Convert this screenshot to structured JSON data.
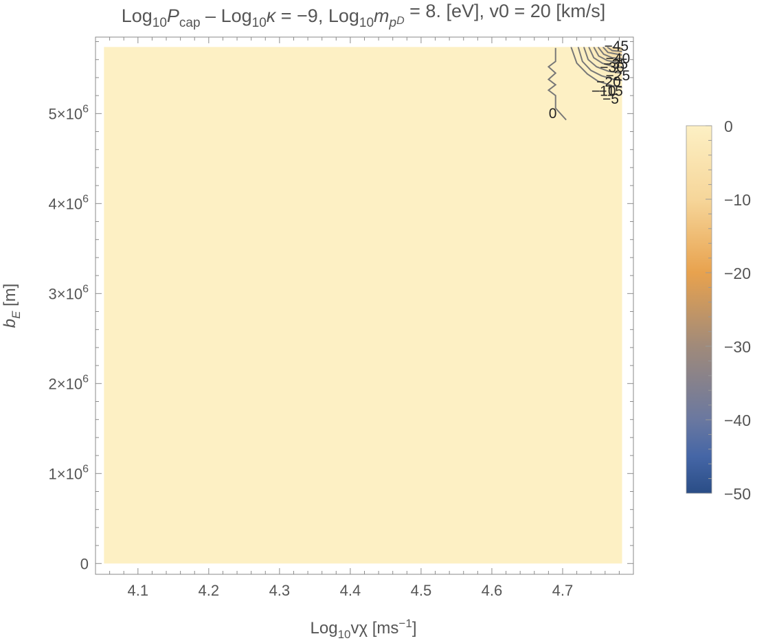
{
  "chart_data": {
    "type": "heatmap",
    "title": {
      "parts": [
        {
          "t": "Log",
          "s": null
        },
        {
          "t": "10",
          "s": "sub"
        },
        {
          "t": "P",
          "s": "italic"
        },
        {
          "t": "cap",
          "s": "sub"
        },
        {
          "t": " – Log",
          "s": null
        },
        {
          "t": "10",
          "s": "sub"
        },
        {
          "t": "κ",
          "s": "italic"
        },
        {
          "t": " = −9, Log",
          "s": null
        },
        {
          "t": "10",
          "s": "sub"
        },
        {
          "t": "m",
          "s": "italic"
        },
        {
          "t": "p",
          "s": "sub-italic"
        },
        {
          "t": "D",
          "s": "subsub-italic"
        },
        {
          "t": " = 8. [eV], v0 = 20 [km/s]",
          "s": null
        }
      ]
    },
    "xlabel": {
      "parts": [
        {
          "t": "Log",
          "s": null
        },
        {
          "t": "10",
          "s": "sub"
        },
        {
          "t": "vχ [ms",
          "s": null
        },
        {
          "t": "−1",
          "s": "sup"
        },
        {
          "t": "]",
          "s": null
        }
      ]
    },
    "ylabel": {
      "parts": [
        {
          "t": "b",
          "s": "italic"
        },
        {
          "t": "E",
          "s": "sub-italic"
        },
        {
          "t": " [m]",
          "s": null
        }
      ]
    },
    "xlim": [
      4.04,
      4.8
    ],
    "ylim": [
      -120000,
      5850000
    ],
    "data_extent": {
      "x": [
        4.052,
        4.784
      ],
      "y": [
        0,
        5740000
      ]
    },
    "x_ticks": [
      4.1,
      4.2,
      4.3,
      4.4,
      4.5,
      4.6,
      4.7
    ],
    "x_tick_labels": [
      "4.1",
      "4.2",
      "4.3",
      "4.4",
      "4.5",
      "4.6",
      "4.7"
    ],
    "y_ticks": [
      0,
      1000000,
      2000000,
      3000000,
      4000000,
      5000000
    ],
    "y_tick_labels": [
      {
        "mant": "0",
        "exp": ""
      },
      {
        "mant": "1×10",
        "exp": "6"
      },
      {
        "mant": "2×10",
        "exp": "6"
      },
      {
        "mant": "3×10",
        "exp": "6"
      },
      {
        "mant": "4×10",
        "exp": "6"
      },
      {
        "mant": "5×10",
        "exp": "6"
      }
    ],
    "background_value": 0,
    "contours": [
      {
        "level": 0,
        "label": "0",
        "points": [
          [
            4.69,
            5.73
          ],
          [
            4.69,
            5.58
          ],
          [
            4.68,
            5.52
          ],
          [
            4.69,
            5.45
          ],
          [
            4.68,
            5.38
          ],
          [
            4.69,
            5.32
          ],
          [
            4.68,
            5.26
          ],
          [
            4.69,
            5.2
          ],
          [
            4.69,
            5.06
          ],
          [
            4.705,
            4.93
          ]
        ],
        "label_at": [
          4.686,
          5.01
        ]
      },
      {
        "level": -5,
        "label": "−5",
        "points": [
          [
            4.712,
            5.74
          ],
          [
            4.72,
            5.56
          ],
          [
            4.735,
            5.44
          ],
          [
            4.75,
            5.36
          ],
          [
            4.77,
            5.31
          ],
          [
            4.784,
            5.29
          ]
        ],
        "label_at": [
          4.768,
          5.17
        ]
      },
      {
        "level": -10,
        "label": "−10",
        "points": [
          [
            4.722,
            5.74
          ],
          [
            4.728,
            5.58
          ],
          [
            4.74,
            5.48
          ],
          [
            4.755,
            5.42
          ],
          [
            4.772,
            5.38
          ],
          [
            4.784,
            5.37
          ]
        ],
        "label_at": [
          4.758,
          5.26
        ]
      },
      {
        "level": -15,
        "label": "−15",
        "points": [
          [
            4.73,
            5.74
          ],
          [
            4.736,
            5.6
          ],
          [
            4.748,
            5.52
          ],
          [
            4.765,
            5.47
          ],
          [
            4.784,
            5.45
          ]
        ],
        "label_at": [
          4.768,
          5.26
        ]
      },
      {
        "level": -20,
        "label": "−20",
        "points": [
          [
            4.737,
            5.74
          ],
          [
            4.744,
            5.62
          ],
          [
            4.756,
            5.56
          ],
          [
            4.772,
            5.52
          ],
          [
            4.784,
            5.51
          ]
        ],
        "label_at": [
          4.765,
          5.36
        ]
      },
      {
        "level": -25,
        "label": "−25",
        "points": [
          [
            4.744,
            5.74
          ],
          [
            4.751,
            5.64
          ],
          [
            4.763,
            5.59
          ],
          [
            4.784,
            5.56
          ]
        ],
        "label_at": [
          4.778,
          5.43
        ]
      },
      {
        "level": -30,
        "label": "−30",
        "points": [
          [
            4.75,
            5.74
          ],
          [
            4.758,
            5.66
          ],
          [
            4.77,
            5.62
          ],
          [
            4.784,
            5.61
          ]
        ],
        "label_at": [
          4.77,
          5.52
        ]
      },
      {
        "level": -35,
        "label": "−35",
        "points": [
          [
            4.757,
            5.74
          ],
          [
            4.764,
            5.68
          ],
          [
            4.784,
            5.65
          ]
        ],
        "label_at": [
          4.775,
          5.56
        ]
      },
      {
        "level": -40,
        "label": "−40",
        "points": [
          [
            4.763,
            5.74
          ],
          [
            4.77,
            5.7
          ],
          [
            4.784,
            5.69
          ]
        ],
        "label_at": [
          4.778,
          5.62
        ]
      },
      {
        "level": -45,
        "label": "−45",
        "points": [
          [
            4.77,
            5.74
          ],
          [
            4.784,
            5.72
          ]
        ],
        "label_at": [
          4.776,
          5.76
        ]
      }
    ],
    "minimum_location": [
      4.784,
      5.74
    ],
    "colorbar": {
      "range": [
        -50,
        0
      ],
      "ticks": [
        0,
        -10,
        -20,
        -30,
        -40,
        -50
      ],
      "tick_labels": [
        "0",
        "−10",
        "−20",
        "−30",
        "−40",
        "−50"
      ],
      "stops": [
        {
          "value": 0,
          "color": "#fdf0c4"
        },
        {
          "value": -10,
          "color": "#f6d69a"
        },
        {
          "value": -20,
          "color": "#e8a24e"
        },
        {
          "value": -30,
          "color": "#a08a7a"
        },
        {
          "value": -40,
          "color": "#6a78a0"
        },
        {
          "value": -45,
          "color": "#4566a6"
        },
        {
          "value": -50,
          "color": "#2a4d86"
        }
      ]
    }
  }
}
